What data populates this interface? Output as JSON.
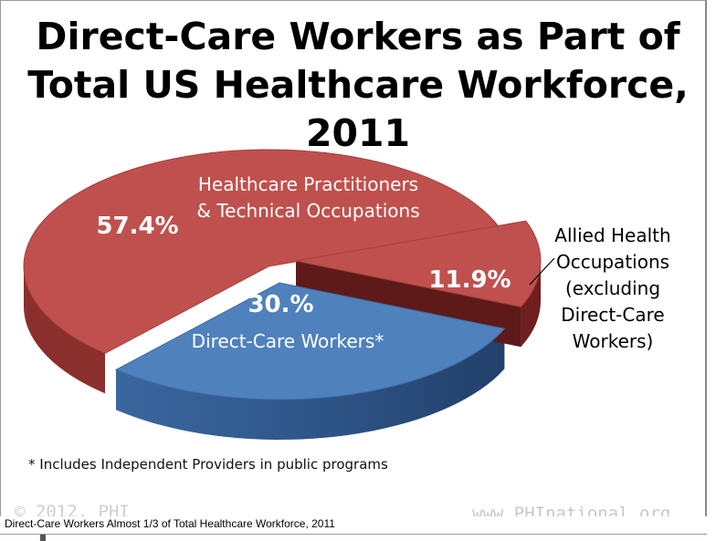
{
  "chart_data": {
    "type": "pie",
    "title": "Direct-Care Workers as Part of Total US Healthcare Workforce, 2011",
    "title_lines": [
      "Direct-Care Workers as Part of",
      "Total US Healthcare Workforce, 2011"
    ],
    "slices": [
      {
        "name": "Healthcare Practitioners & Technical Occupations",
        "label_lines": [
          "Healthcare Practitioners",
          "& Technical Occupations"
        ],
        "value": 57.4,
        "value_label": "57.4%",
        "color": "#c0504d",
        "side_color": "#8b2f2d"
      },
      {
        "name": "Direct-Care Workers*",
        "label_lines": [
          "Direct-Care Workers*"
        ],
        "value": 30.0,
        "value_label": "30.%",
        "color": "#4f81bd",
        "side_color": "#2c4d7a"
      },
      {
        "name": "Allied Health Occupations (excluding Direct-Care Workers)",
        "label_lines": [
          "Allied Health",
          "Occupations",
          "(excluding",
          "Direct-Care",
          "Workers)"
        ],
        "value": 11.9,
        "value_label": "11.9%",
        "color": "#c0504d",
        "side_color": "#6e1f1d"
      }
    ],
    "style": "3d-exploded"
  },
  "footnote": "* Includes Independent Providers in public programs",
  "copyright": "© 2012, PHI",
  "website": "www.PHInational.org",
  "caption": "Direct-Care Workers Almost 1/3 of Total Healthcare Workforce, 2011"
}
